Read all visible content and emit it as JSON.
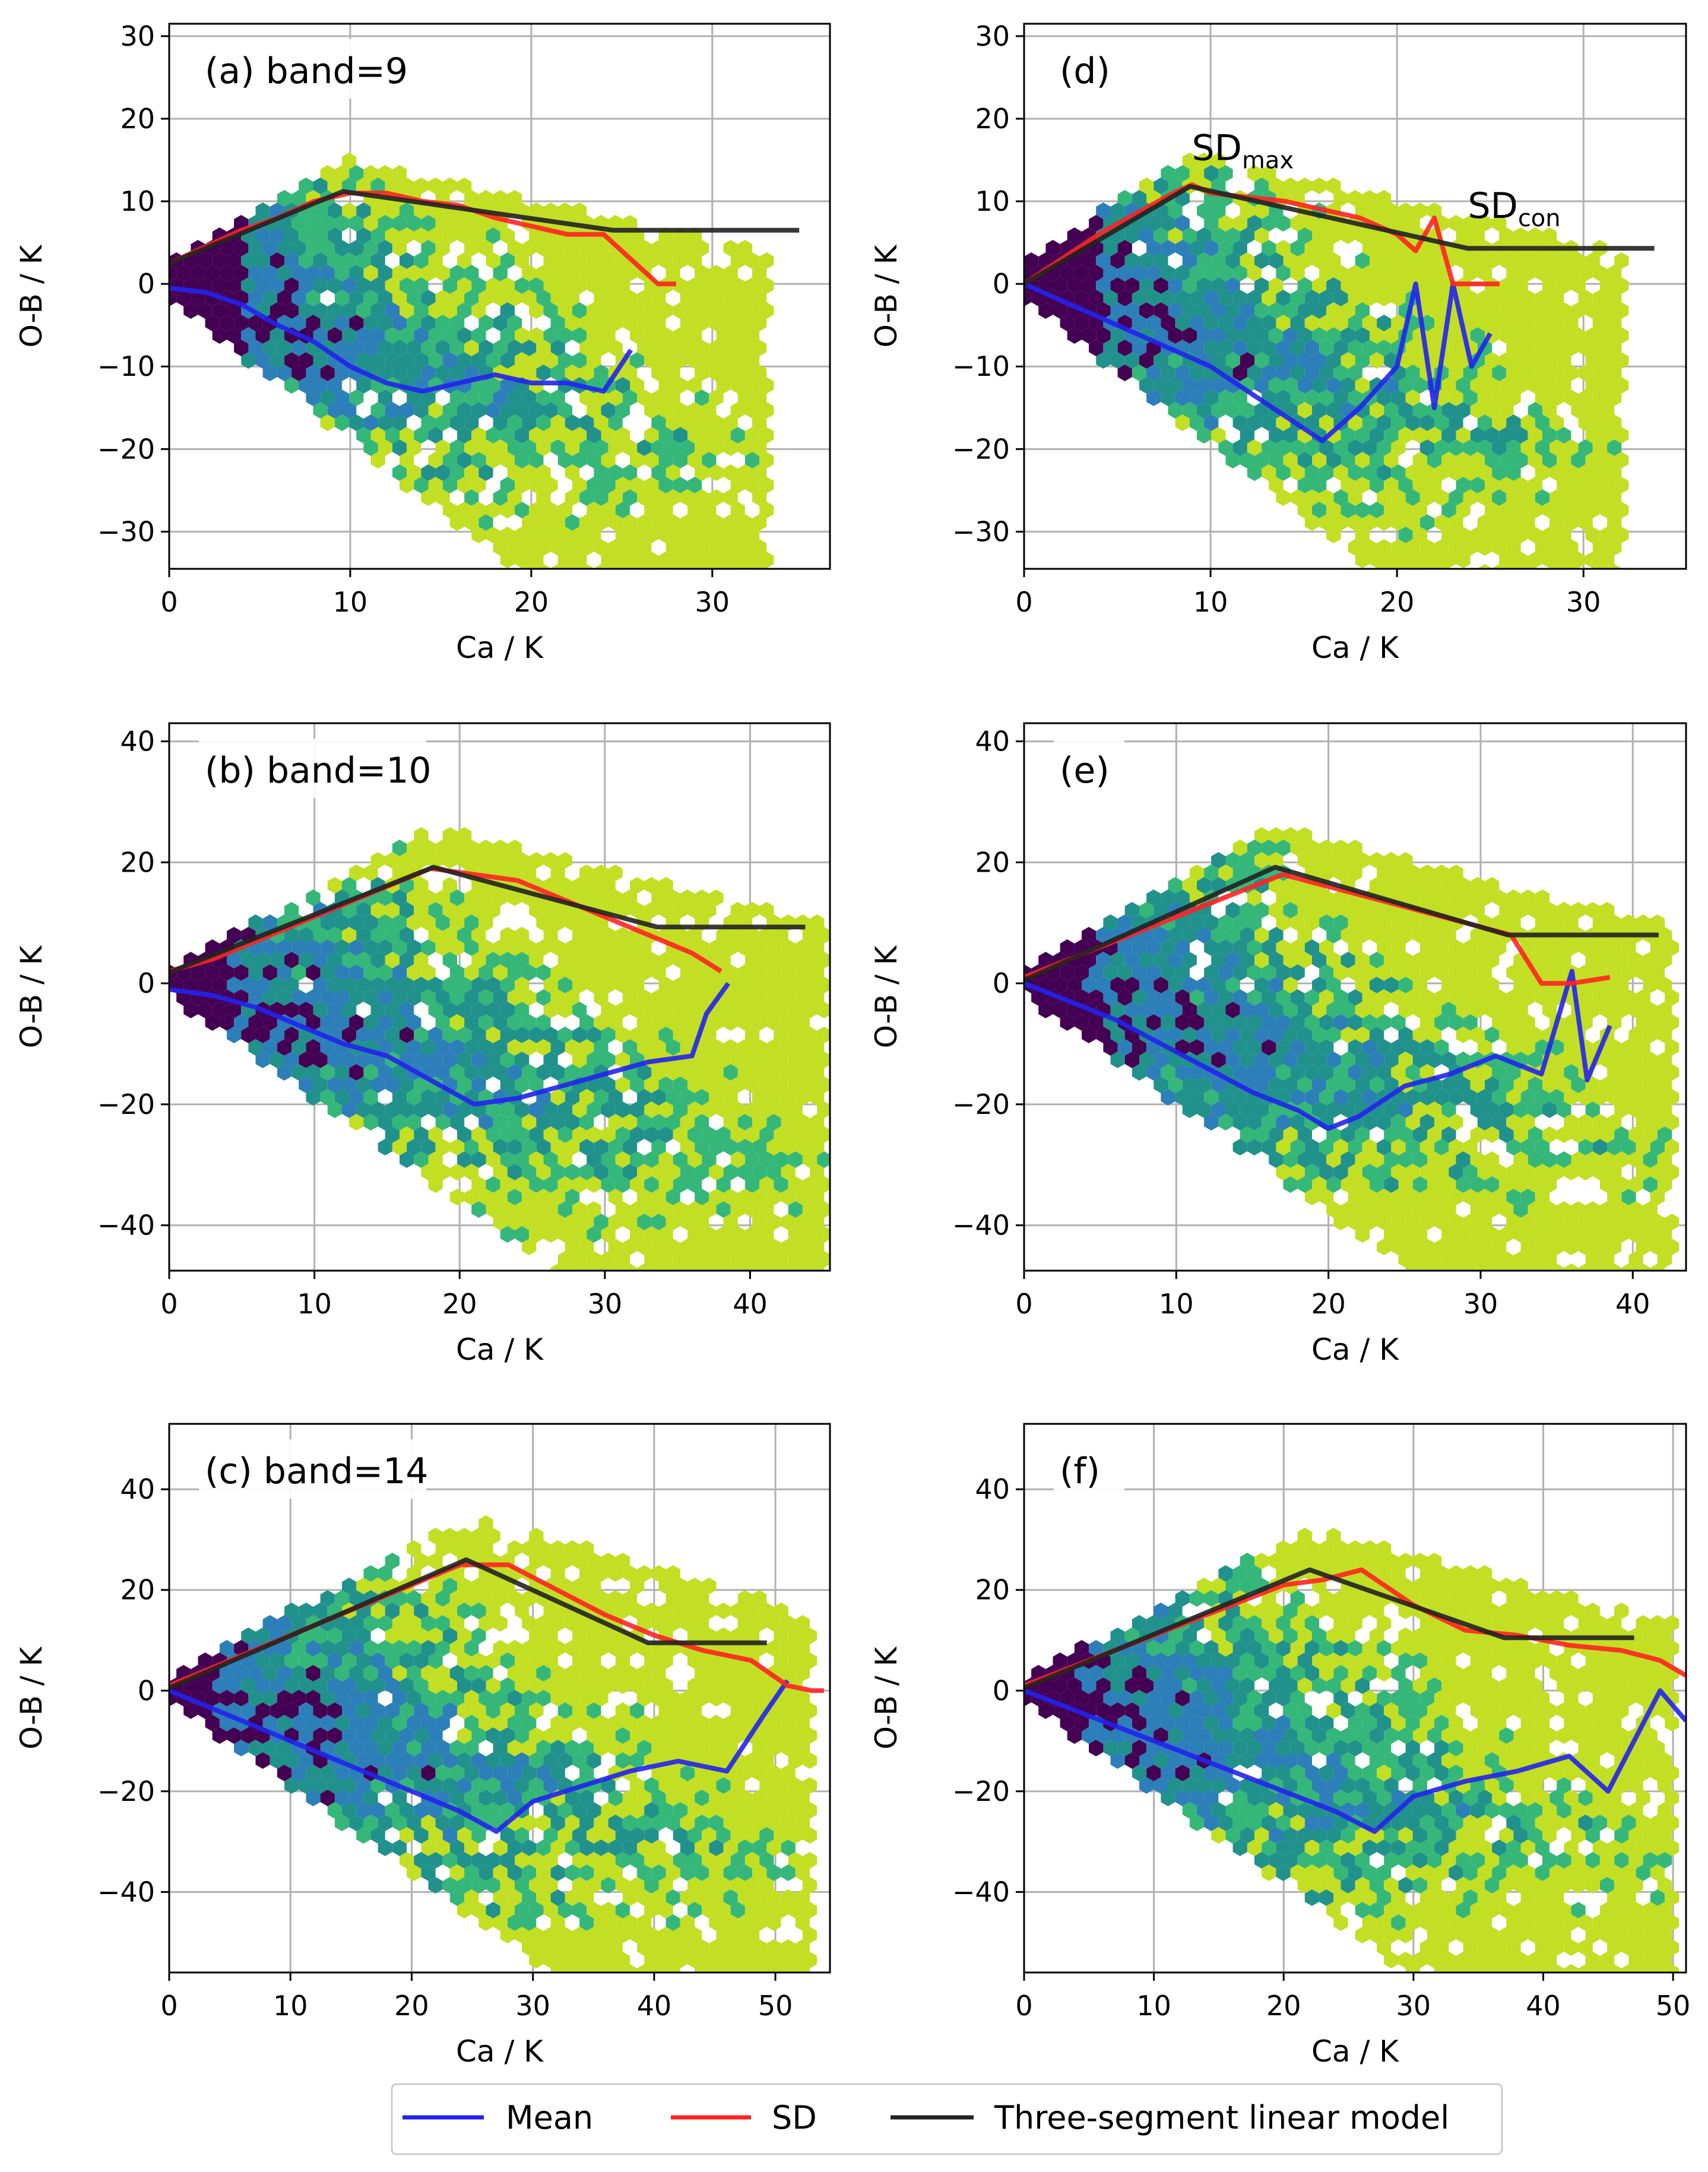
{
  "figure": {
    "legend": {
      "placement": "bottom-center",
      "entries": [
        {
          "label": "Mean",
          "color": "#2222ee"
        },
        {
          "label": "SD",
          "color": "#ff2222"
        },
        {
          "label": "Three-segment linear model",
          "color": "#222222"
        }
      ]
    },
    "colors": {
      "mean": "#2222ee",
      "sd": "#ff2222",
      "model": "#222222",
      "hex_palette": [
        "#440154",
        "#2c7fb8",
        "#21918c",
        "#35b779",
        "#c2df23"
      ]
    },
    "annotations": [
      {
        "panel": 3,
        "main": "SD",
        "sub": "max",
        "near_x": 9.0,
        "near_y": 15.0
      },
      {
        "panel": 3,
        "main": "SD",
        "sub": "con",
        "near_x": 23.8,
        "near_y": 8.0
      }
    ]
  },
  "chart_data": [
    {
      "type": "scatter",
      "title": "(a) band=9",
      "xlabel": "Ca / K",
      "ylabel": "O-B / K",
      "xlim": [
        0,
        36.5
      ],
      "ylim": [
        -34.5,
        31.5
      ],
      "xticks": [
        0,
        10,
        20,
        30
      ],
      "yticks": [
        -30,
        -20,
        -10,
        0,
        10,
        20,
        30
      ],
      "grid": true,
      "series": [
        {
          "name": "Mean",
          "x": [
            0,
            2,
            4,
            6,
            8,
            10,
            12,
            14,
            16,
            18,
            20,
            22,
            24,
            25.5
          ],
          "y": [
            -0.5,
            -1,
            -2.5,
            -5,
            -7,
            -10,
            -12,
            -13,
            -12,
            -11,
            -12,
            -12,
            -13,
            -8
          ]
        },
        {
          "name": "SD",
          "x": [
            0,
            2,
            4,
            6,
            8,
            10,
            12,
            14,
            16,
            18,
            20,
            22,
            24,
            26,
            27,
            28
          ],
          "y": [
            2.5,
            4.5,
            6.5,
            8,
            10,
            11,
            11,
            10,
            9.5,
            8,
            7,
            6,
            6,
            2,
            0,
            0
          ]
        },
        {
          "name": "Three-segment linear model",
          "x": [
            0,
            9.6,
            24.5,
            34.8
          ],
          "y": [
            2.5,
            11.2,
            6.5,
            6.5
          ]
        }
      ]
    },
    {
      "type": "scatter",
      "title": "(b) band=10",
      "xlabel": "Ca / K",
      "ylabel": "O-B / K",
      "xlim": [
        0,
        45.5
      ],
      "ylim": [
        -47.5,
        43
      ],
      "xticks": [
        0,
        10,
        20,
        30,
        40
      ],
      "yticks": [
        -40,
        -20,
        0,
        20,
        40
      ],
      "grid": true,
      "series": [
        {
          "name": "Mean",
          "x": [
            0,
            3,
            6,
            9,
            12,
            15,
            18,
            21,
            24,
            27,
            30,
            33,
            36,
            37,
            38.5
          ],
          "y": [
            -1,
            -2,
            -4,
            -7,
            -10,
            -12,
            -16,
            -20,
            -19,
            -17,
            -15,
            -13,
            -12,
            -5,
            0
          ]
        },
        {
          "name": "SD",
          "x": [
            0,
            3,
            6,
            9,
            12,
            15,
            18,
            21,
            24,
            27,
            30,
            33,
            36,
            38
          ],
          "y": [
            2,
            4,
            7,
            10,
            13,
            16,
            19,
            18,
            17,
            14,
            11,
            8,
            5,
            2
          ]
        },
        {
          "name": "Three-segment linear model",
          "x": [
            0,
            18.2,
            33.6,
            43.8
          ],
          "y": [
            1.8,
            19.2,
            9.3,
            9.3
          ]
        }
      ]
    },
    {
      "type": "scatter",
      "title": "(c) band=14",
      "xlabel": "Ca / K",
      "ylabel": "O-B / K",
      "xlim": [
        0,
        54.5
      ],
      "ylim": [
        -56,
        53
      ],
      "xticks": [
        0,
        10,
        20,
        30,
        40,
        50
      ],
      "yticks": [
        -40,
        -20,
        0,
        20,
        40
      ],
      "grid": true,
      "series": [
        {
          "name": "Mean",
          "x": [
            0,
            4,
            8,
            12,
            16,
            20,
            24,
            27,
            30,
            34,
            38,
            42,
            46,
            49,
            51
          ],
          "y": [
            0,
            -4,
            -8,
            -12,
            -16,
            -20,
            -24,
            -28,
            -22,
            -19,
            -16,
            -14,
            -16,
            -5,
            2
          ]
        },
        {
          "name": "SD",
          "x": [
            0,
            4,
            8,
            12,
            16,
            20,
            24,
            28,
            32,
            36,
            40,
            44,
            48,
            51,
            53,
            54
          ],
          "y": [
            1,
            5,
            9,
            13,
            17,
            21,
            25,
            25,
            20,
            15,
            11,
            8,
            6,
            1,
            0,
            0
          ]
        },
        {
          "name": "Three-segment linear model",
          "x": [
            0,
            24.5,
            39.5,
            49.3
          ],
          "y": [
            0.5,
            26,
            9.5,
            9.5
          ]
        }
      ]
    },
    {
      "type": "scatter",
      "title": "(d)",
      "xlabel": "Ca / K",
      "ylabel": "O-B / K",
      "xlim": [
        0,
        35.5
      ],
      "ylim": [
        -34.5,
        31.5
      ],
      "xticks": [
        0,
        10,
        20,
        30
      ],
      "yticks": [
        -30,
        -20,
        -10,
        0,
        10,
        20,
        30
      ],
      "grid": true,
      "series": [
        {
          "name": "Mean",
          "x": [
            0,
            2,
            4,
            6,
            8,
            10,
            12,
            14,
            16,
            18,
            20,
            21,
            22,
            23,
            24,
            25
          ],
          "y": [
            0,
            -2,
            -4,
            -6,
            -8,
            -10,
            -13,
            -16,
            -19,
            -15,
            -10,
            0,
            -15,
            0,
            -10,
            -6
          ]
        },
        {
          "name": "SD",
          "x": [
            0,
            2,
            4,
            6,
            8,
            9,
            10,
            12,
            14,
            16,
            18,
            20,
            21,
            22,
            23,
            24,
            25.5
          ],
          "y": [
            0,
            3,
            6,
            8.5,
            11,
            12,
            11,
            10.5,
            10,
            9,
            8,
            6,
            4,
            8,
            0,
            0,
            0
          ]
        },
        {
          "name": "Three-segment linear model",
          "x": [
            0,
            8.9,
            23.8,
            33.8
          ],
          "y": [
            0,
            11.8,
            4.3,
            4.3
          ]
        }
      ]
    },
    {
      "type": "scatter",
      "title": "(e)",
      "xlabel": "Ca / K",
      "ylabel": "O-B / K",
      "xlim": [
        0,
        43.5
      ],
      "ylim": [
        -47.5,
        43
      ],
      "xticks": [
        0,
        10,
        20,
        30,
        40
      ],
      "yticks": [
        -40,
        -20,
        0,
        20,
        40
      ],
      "grid": true,
      "series": [
        {
          "name": "Mean",
          "x": [
            0,
            3,
            6,
            9,
            12,
            15,
            18,
            20,
            22,
            25,
            28,
            31,
            34,
            36,
            37,
            38.5
          ],
          "y": [
            0,
            -3,
            -6,
            -10,
            -14,
            -18,
            -21,
            -24,
            -22,
            -17,
            -15,
            -12,
            -15,
            2,
            -16,
            -7
          ]
        },
        {
          "name": "SD",
          "x": [
            0,
            3,
            6,
            9,
            12,
            15,
            17,
            20,
            23,
            26,
            29,
            32,
            34,
            36,
            38.5
          ],
          "y": [
            1,
            4,
            7,
            10,
            13,
            16,
            18,
            16,
            14,
            12,
            10,
            8,
            0,
            0,
            1
          ]
        },
        {
          "name": "Three-segment linear model",
          "x": [
            0,
            16.5,
            31.8,
            41.7
          ],
          "y": [
            0.5,
            19.2,
            8,
            8
          ]
        }
      ]
    },
    {
      "type": "scatter",
      "title": "(f)",
      "xlabel": "Ca / K",
      "ylabel": "O-B / K",
      "xlim": [
        0,
        51
      ],
      "ylim": [
        -56,
        53
      ],
      "xticks": [
        0,
        10,
        20,
        30,
        40,
        50
      ],
      "yticks": [
        -40,
        -20,
        0,
        20,
        40
      ],
      "grid": true,
      "series": [
        {
          "name": "Mean",
          "x": [
            0,
            4,
            8,
            12,
            16,
            20,
            24,
            27,
            30,
            34,
            38,
            42,
            45,
            47,
            49,
            51
          ],
          "y": [
            0,
            -4,
            -8,
            -12,
            -16,
            -20,
            -24,
            -28,
            -21,
            -18,
            -16,
            -13,
            -20,
            -10,
            0,
            -6
          ]
        },
        {
          "name": "SD",
          "x": [
            0,
            4,
            8,
            12,
            16,
            20,
            23,
            26,
            30,
            34,
            38,
            42,
            46,
            49,
            51
          ],
          "y": [
            1,
            5,
            9,
            13,
            17,
            21,
            22,
            24,
            17,
            12,
            11,
            9,
            8,
            6,
            3
          ]
        },
        {
          "name": "Three-segment linear model",
          "x": [
            0,
            22,
            37,
            47
          ],
          "y": [
            0.5,
            24,
            10.5,
            10.5
          ]
        }
      ]
    }
  ]
}
